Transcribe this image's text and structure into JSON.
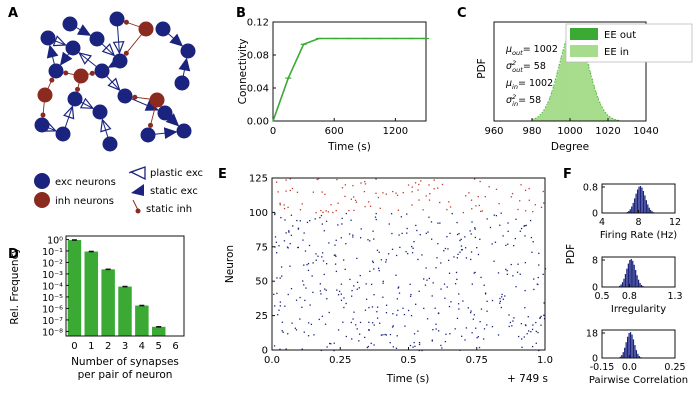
{
  "colors": {
    "exc": "#1a237e",
    "inh": "#8b2a1e",
    "green_dark": "#3aaa35",
    "green_light": "#a6dc8c",
    "black": "#111111"
  },
  "panel_labels": {
    "A": "A",
    "B": "B",
    "C": "C",
    "D": "D",
    "E": "E",
    "F": "F"
  },
  "network": {
    "legend": {
      "exc_neurons": "exc neurons",
      "inh_neurons": "inh neurons",
      "plastic_exc": "plastic exc",
      "static_exc": "static exc",
      "static_inh": "static inh"
    }
  },
  "chart_data": [
    {
      "id": "B",
      "type": "line",
      "title": "",
      "xlabel": "Time (s)",
      "ylabel": "Connectivity",
      "xlim": [
        0,
        1500
      ],
      "ylim": [
        0,
        0.12
      ],
      "xticks": [
        0,
        600,
        1200
      ],
      "yticks": [
        0.0,
        0.04,
        0.08,
        0.12
      ],
      "xticklabels": [
        "0",
        "600",
        "1200"
      ],
      "yticklabels": [
        "0.00",
        "0.04",
        "0.08",
        "0.12"
      ],
      "series": [
        {
          "name": "connectivity",
          "x": [
            0,
            150,
            300,
            450,
            600,
            750,
            900,
            1050,
            1200,
            1350,
            1500
          ],
          "y": [
            0,
            0.052,
            0.093,
            0.1,
            0.1,
            0.1,
            0.1,
            0.1,
            0.1,
            0.1,
            0.1
          ]
        }
      ]
    },
    {
      "id": "C",
      "type": "bar",
      "xlabel": "Degree",
      "ylabel": "PDF",
      "xlim": [
        960,
        1040
      ],
      "xticks": [
        960,
        980,
        1000,
        1020,
        1040
      ],
      "xticklabels": [
        "960",
        "980",
        "1000",
        "1020",
        "1040"
      ],
      "mean": 1002,
      "std": 7.6,
      "legend": [
        "EE out",
        "EE in"
      ],
      "annotations": [
        {
          "label": "μ",
          "sub": "out",
          "sup": "",
          "value": "= 1002"
        },
        {
          "label": "σ",
          "sub": "out",
          "sup": "2",
          "value": "= 58"
        },
        {
          "label": "μ",
          "sub": "in",
          "sup": "",
          "value": "= 1002"
        },
        {
          "label": "σ",
          "sub": "in",
          "sup": "2",
          "value": "= 58"
        }
      ]
    },
    {
      "id": "D",
      "type": "bar",
      "xlabel": "Number of synapses\nper pair of neuron",
      "xlabel_lines": [
        "Number of synapses",
        "per pair of neuron"
      ],
      "ylabel": "Rel. Frequency",
      "categories": [
        "0",
        "1",
        "2",
        "3",
        "4",
        "5",
        "6"
      ],
      "values_log10": [
        -0.05,
        -1.05,
        -2.6,
        -4.1,
        -5.75,
        -7.6,
        null
      ],
      "yticks_log10": [
        0,
        -1,
        -2,
        -3,
        -4,
        -5,
        -6,
        -7,
        -8
      ],
      "yticklabels": [
        "10⁰",
        "10⁻¹",
        "10⁻²",
        "10⁻³",
        "10⁻⁴",
        "10⁻⁵",
        "10⁻⁶",
        "10⁻⁷",
        "10⁻⁸"
      ]
    },
    {
      "id": "E",
      "type": "scatter",
      "xlabel": "Time (s)",
      "ylabel": "Neuron",
      "offset_label": "+ 749 s",
      "xlim": [
        0,
        1
      ],
      "ylim": [
        0,
        125
      ],
      "xticks": [
        0,
        0.25,
        0.5,
        0.75,
        1.0
      ],
      "xticklabels": [
        "0.0",
        "0.25",
        "0.5",
        "0.75",
        "1.0"
      ],
      "yticks": [
        0,
        25,
        50,
        75,
        100,
        125
      ],
      "yticklabels": [
        "0",
        "25",
        "50",
        "75",
        "100",
        "125"
      ],
      "inh_from": 100,
      "spike_seed": 7,
      "exc_spikes": 470,
      "inh_spikes": 110
    },
    {
      "id": "F1",
      "type": "bar",
      "xlabel": "Firing Rate (Hz)",
      "xlim": [
        4,
        12
      ],
      "xticks": [
        4,
        8,
        12
      ],
      "xticklabels": [
        "4",
        "8",
        "12"
      ],
      "yticks": [
        0,
        0.8
      ],
      "yticklabels": [
        "0",
        "0.8"
      ],
      "mean": 8.2,
      "std": 0.55
    },
    {
      "id": "F2",
      "type": "bar",
      "xlabel": "Irregularity",
      "ylabel": "PDF",
      "xlim": [
        0.5,
        1.3
      ],
      "xticks": [
        0.5,
        0.8,
        1.3
      ],
      "xticklabels": [
        "0.5",
        "0.8",
        "1.3"
      ],
      "yticks": [
        0,
        8
      ],
      "yticklabels": [
        "0",
        "8"
      ],
      "mean": 0.82,
      "std": 0.05
    },
    {
      "id": "F3",
      "type": "bar",
      "xlabel": "Pairwise Correlation",
      "xlim": [
        -0.15,
        0.25
      ],
      "xticks": [
        -0.15,
        0.0,
        0.25
      ],
      "xticklabels": [
        "-0.15",
        "0.0",
        "0.25"
      ],
      "yticks": [
        0,
        18
      ],
      "yticklabels": [
        "0",
        "18"
      ],
      "mean": 0.005,
      "std": 0.022
    }
  ]
}
